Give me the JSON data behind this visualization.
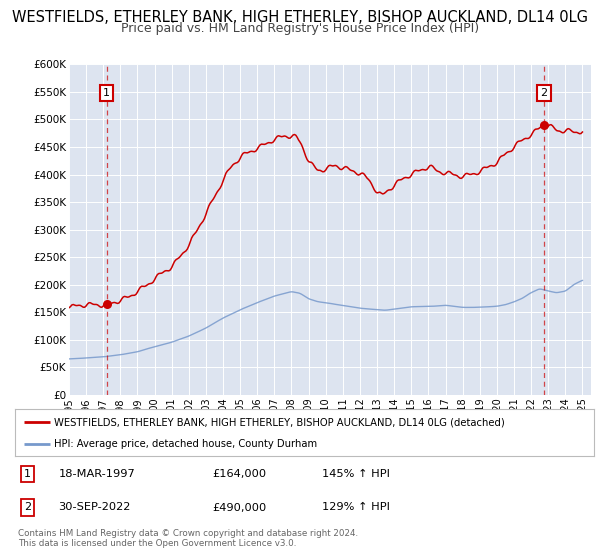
{
  "title": "WESTFIELDS, ETHERLEY BANK, HIGH ETHERLEY, BISHOP AUCKLAND, DL14 0LG",
  "subtitle": "Price paid vs. HM Land Registry's House Price Index (HPI)",
  "ylim": [
    0,
    600000
  ],
  "yticks": [
    0,
    50000,
    100000,
    150000,
    200000,
    250000,
    300000,
    350000,
    400000,
    450000,
    500000,
    550000,
    600000
  ],
  "ytick_labels": [
    "£0",
    "£50K",
    "£100K",
    "£150K",
    "£200K",
    "£250K",
    "£300K",
    "£350K",
    "£400K",
    "£450K",
    "£500K",
    "£550K",
    "£600K"
  ],
  "xlim_start": 1995.0,
  "xlim_end": 2025.5,
  "xticks": [
    1995,
    1996,
    1997,
    1998,
    1999,
    2000,
    2001,
    2002,
    2003,
    2004,
    2005,
    2006,
    2007,
    2008,
    2009,
    2010,
    2011,
    2012,
    2013,
    2014,
    2015,
    2016,
    2017,
    2018,
    2019,
    2020,
    2021,
    2022,
    2023,
    2024,
    2025
  ],
  "background_color": "#ffffff",
  "plot_bg_color": "#dde4f0",
  "grid_color": "#ffffff",
  "red_line_color": "#cc0000",
  "blue_line_color": "#7799cc",
  "marker1_date": 1997.21,
  "marker1_value": 164000,
  "marker2_date": 2022.75,
  "marker2_value": 490000,
  "legend_label_red": "WESTFIELDS, ETHERLEY BANK, HIGH ETHERLEY, BISHOP AUCKLAND, DL14 0LG (detached)",
  "legend_label_blue": "HPI: Average price, detached house, County Durham",
  "table_row1": [
    "1",
    "18-MAR-1997",
    "£164,000",
    "145% ↑ HPI"
  ],
  "table_row2": [
    "2",
    "30-SEP-2022",
    "£490,000",
    "129% ↑ HPI"
  ],
  "footer1": "Contains HM Land Registry data © Crown copyright and database right 2024.",
  "footer2": "This data is licensed under the Open Government Licence v3.0.",
  "title_fontsize": 10.5,
  "subtitle_fontsize": 9.0
}
